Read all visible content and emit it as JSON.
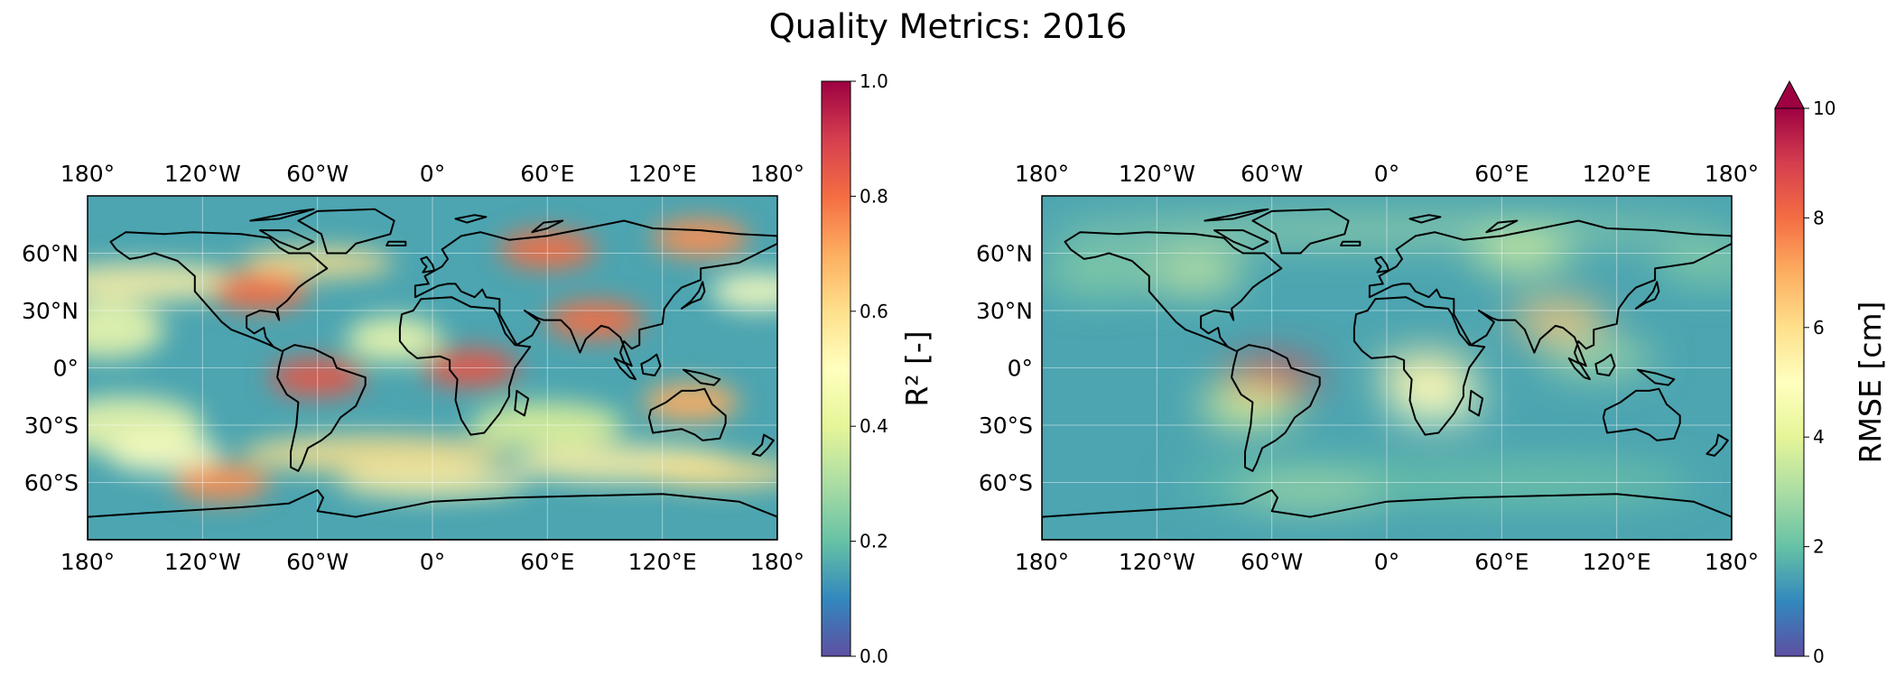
{
  "figure": {
    "title": "Quality Metrics: 2016"
  },
  "chart_data": [
    {
      "type": "heatmap",
      "title": "",
      "map": "global equirectangular (longitude × latitude) with coastlines and light gridlines",
      "x_ticks": [
        "180°",
        "120°W",
        "60°W",
        "0°",
        "60°E",
        "120°E",
        "180°"
      ],
      "y_ticks": [
        "60°N",
        "30°N",
        "0°",
        "30°S",
        "60°S"
      ],
      "xlim": [
        -180,
        180
      ],
      "ylim": [
        -90,
        90
      ],
      "colormap": "Spectral_r",
      "colorbar": {
        "label": "R² [-]",
        "ticks": [
          "0.0",
          "0.2",
          "0.4",
          "0.6",
          "0.8",
          "1.0"
        ],
        "range": [
          0,
          1
        ],
        "extend": "none"
      },
      "hotspots": [
        {
          "region": "Amazon basin",
          "lon": -60,
          "lat": -5,
          "value": 0.85
        },
        {
          "region": "Central Africa",
          "lon": 20,
          "lat": 0,
          "value": 0.85
        },
        {
          "region": "Northern Eurasia",
          "lon": 60,
          "lat": 62,
          "value": 0.8
        },
        {
          "region": "Eastern North America",
          "lon": -90,
          "lat": 40,
          "value": 0.8
        },
        {
          "region": "Southern Ocean",
          "lon": -110,
          "lat": -60,
          "value": 0.75
        },
        {
          "region": "South Asia",
          "lon": 85,
          "lat": 25,
          "value": 0.8
        },
        {
          "region": "Northern Australia",
          "lon": 135,
          "lat": -18,
          "value": 0.7
        },
        {
          "region": "Siberia",
          "lon": 140,
          "lat": 68,
          "value": 0.75
        }
      ],
      "background_value": 0.15
    },
    {
      "type": "heatmap",
      "title": "",
      "map": "global equirectangular (longitude × latitude) with coastlines and light gridlines",
      "x_ticks": [
        "180°",
        "120°W",
        "60°W",
        "0°",
        "60°E",
        "120°E",
        "180°"
      ],
      "y_ticks": [
        "60°N",
        "30°N",
        "0°",
        "30°S",
        "60°S"
      ],
      "xlim": [
        -180,
        180
      ],
      "ylim": [
        -90,
        90
      ],
      "colormap": "Spectral_r",
      "colorbar": {
        "label": "RMSE [cm]",
        "ticks": [
          "0",
          "2",
          "4",
          "6",
          "8",
          "10"
        ],
        "range": [
          0,
          10
        ],
        "extend": "max"
      },
      "hotspots": [
        {
          "region": "Amazon basin",
          "lon": -60,
          "lat": -5,
          "value": 9
        },
        {
          "region": "Central Africa",
          "lon": 20,
          "lat": -2,
          "value": 5.5
        },
        {
          "region": "South Asia",
          "lon": 90,
          "lat": 25,
          "value": 6.5
        },
        {
          "region": "Southern Africa",
          "lon": 25,
          "lat": -18,
          "value": 5
        },
        {
          "region": "Northern Eurasia",
          "lon": 70,
          "lat": 60,
          "value": 3.5
        },
        {
          "region": "North America",
          "lon": -100,
          "lat": 50,
          "value": 3.5
        },
        {
          "region": "Andes",
          "lon": -72,
          "lat": -20,
          "value": 4
        }
      ],
      "background_value": 1.5
    }
  ]
}
